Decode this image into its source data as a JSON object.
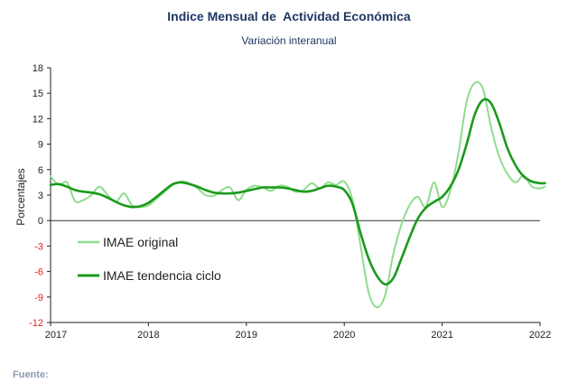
{
  "title": "Indice Mensual de  Actividad Económica",
  "subtitle": "Variación interanual",
  "source_label": "Fuente:",
  "colors": {
    "original": "#8fdc8f",
    "trend": "#1a9a1a",
    "negative_tick": "#e02020",
    "zero_line": "#333333"
  },
  "chart_data": {
    "type": "line",
    "title": "Indice Mensual de  Actividad Económica",
    "subtitle": "Variación interanual",
    "ylabel": "Porcentajes",
    "xlabel": "",
    "ylim": [
      -12,
      18
    ],
    "yticks": [
      18,
      15,
      12,
      9,
      6,
      3,
      0,
      -3,
      -6,
      -9,
      -12
    ],
    "xlim": [
      2017,
      2022
    ],
    "xticks": [
      "2017",
      "2018",
      "2019",
      "2020",
      "2021",
      "2022"
    ],
    "grid": false,
    "legend": "left",
    "series": [
      {
        "name": "IMAE original",
        "x": [
          2017.0,
          2017.083,
          2017.167,
          2017.25,
          2017.333,
          2017.417,
          2017.5,
          2017.583,
          2017.667,
          2017.75,
          2017.833,
          2017.917,
          2018.0,
          2018.083,
          2018.167,
          2018.25,
          2018.333,
          2018.417,
          2018.5,
          2018.583,
          2018.667,
          2018.75,
          2018.833,
          2018.917,
          2019.0,
          2019.083,
          2019.167,
          2019.25,
          2019.333,
          2019.417,
          2019.5,
          2019.583,
          2019.667,
          2019.75,
          2019.833,
          2019.917,
          2020.0,
          2020.083,
          2020.167,
          2020.25,
          2020.333,
          2020.417,
          2020.5,
          2020.583,
          2020.667,
          2020.75,
          2020.833,
          2020.917,
          2021.0,
          2021.083,
          2021.167,
          2021.25,
          2021.333,
          2021.417,
          2021.5,
          2021.583,
          2021.667,
          2021.75,
          2021.833,
          2021.917,
          2022.0,
          2022.05
        ],
        "values": [
          5.2,
          4.2,
          4.5,
          2.3,
          2.4,
          3.0,
          4.0,
          3.0,
          2.2,
          3.2,
          1.8,
          1.6,
          1.8,
          2.6,
          3.4,
          4.2,
          4.6,
          4.4,
          3.8,
          3.0,
          2.9,
          3.6,
          3.9,
          2.4,
          3.6,
          4.1,
          3.9,
          3.5,
          4.1,
          4.0,
          3.4,
          3.6,
          4.4,
          3.8,
          4.5,
          4.2,
          4.6,
          2.5,
          -3.0,
          -8.5,
          -10.2,
          -8.8,
          -4.0,
          -0.5,
          1.8,
          2.8,
          1.6,
          4.5,
          1.6,
          3.5,
          8.0,
          14.0,
          16.2,
          15.5,
          11.0,
          7.5,
          5.5,
          4.5,
          5.3,
          4.0,
          3.8,
          4.0
        ]
      },
      {
        "name": "IMAE tendencia ciclo",
        "x": [
          2017.0,
          2017.083,
          2017.167,
          2017.25,
          2017.333,
          2017.417,
          2017.5,
          2017.583,
          2017.667,
          2017.75,
          2017.833,
          2017.917,
          2018.0,
          2018.083,
          2018.167,
          2018.25,
          2018.333,
          2018.417,
          2018.5,
          2018.583,
          2018.667,
          2018.75,
          2018.833,
          2018.917,
          2019.0,
          2019.083,
          2019.167,
          2019.25,
          2019.333,
          2019.417,
          2019.5,
          2019.583,
          2019.667,
          2019.75,
          2019.833,
          2019.917,
          2020.0,
          2020.083,
          2020.167,
          2020.25,
          2020.333,
          2020.417,
          2020.5,
          2020.583,
          2020.667,
          2020.75,
          2020.833,
          2020.917,
          2021.0,
          2021.083,
          2021.167,
          2021.25,
          2021.333,
          2021.417,
          2021.5,
          2021.583,
          2021.667,
          2021.75,
          2021.833,
          2021.917,
          2022.0,
          2022.05
        ],
        "values": [
          4.2,
          4.3,
          4.0,
          3.6,
          3.4,
          3.3,
          3.1,
          2.7,
          2.2,
          1.8,
          1.6,
          1.7,
          2.1,
          2.8,
          3.6,
          4.3,
          4.5,
          4.3,
          4.0,
          3.6,
          3.3,
          3.2,
          3.2,
          3.3,
          3.5,
          3.7,
          3.9,
          3.9,
          3.9,
          3.8,
          3.6,
          3.4,
          3.5,
          3.8,
          4.1,
          4.0,
          3.6,
          2.0,
          -1.5,
          -4.5,
          -6.5,
          -7.5,
          -6.8,
          -4.5,
          -2.0,
          0.2,
          1.5,
          2.2,
          2.8,
          4.0,
          6.0,
          9.0,
          12.5,
          14.2,
          13.8,
          11.5,
          8.5,
          6.5,
          5.2,
          4.6,
          4.4,
          4.4
        ]
      }
    ]
  }
}
